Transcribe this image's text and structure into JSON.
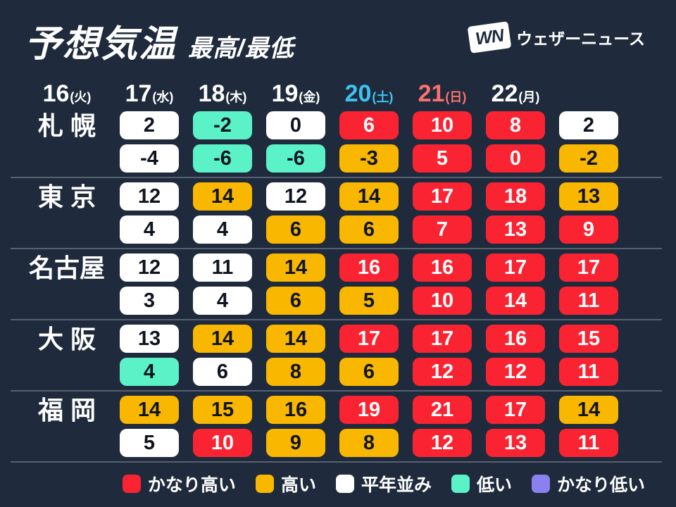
{
  "header": {
    "title": "予想気温",
    "subtitle": "最高/最低",
    "logo": {
      "mark": "WN",
      "text": "ウェザーニュース"
    }
  },
  "dates": [
    {
      "day": "16",
      "weekday": "(火)",
      "type": "weekday"
    },
    {
      "day": "17",
      "weekday": "(水)",
      "type": "weekday"
    },
    {
      "day": "18",
      "weekday": "(木)",
      "type": "weekday"
    },
    {
      "day": "19",
      "weekday": "(金)",
      "type": "weekday"
    },
    {
      "day": "20",
      "weekday": "(土)",
      "type": "saturday"
    },
    {
      "day": "21",
      "weekday": "(日)",
      "type": "sunday"
    },
    {
      "day": "22",
      "weekday": "(月)",
      "type": "weekday"
    }
  ],
  "cities": [
    {
      "name": "札 幌",
      "high": [
        {
          "v": "2",
          "level": "normal"
        },
        {
          "v": "-2",
          "level": "low"
        },
        {
          "v": "0",
          "level": "normal"
        },
        {
          "v": "6",
          "level": "very_high"
        },
        {
          "v": "10",
          "level": "very_high"
        },
        {
          "v": "8",
          "level": "very_high"
        },
        {
          "v": "2",
          "level": "normal"
        }
      ],
      "low": [
        {
          "v": "-4",
          "level": "normal"
        },
        {
          "v": "-6",
          "level": "low"
        },
        {
          "v": "-6",
          "level": "low"
        },
        {
          "v": "-3",
          "level": "high"
        },
        {
          "v": "5",
          "level": "very_high"
        },
        {
          "v": "0",
          "level": "very_high"
        },
        {
          "v": "-2",
          "level": "high"
        }
      ]
    },
    {
      "name": "東 京",
      "high": [
        {
          "v": "12",
          "level": "normal"
        },
        {
          "v": "14",
          "level": "high"
        },
        {
          "v": "12",
          "level": "normal"
        },
        {
          "v": "14",
          "level": "high"
        },
        {
          "v": "17",
          "level": "very_high"
        },
        {
          "v": "18",
          "level": "very_high"
        },
        {
          "v": "13",
          "level": "high"
        }
      ],
      "low": [
        {
          "v": "4",
          "level": "normal"
        },
        {
          "v": "4",
          "level": "normal"
        },
        {
          "v": "6",
          "level": "high"
        },
        {
          "v": "6",
          "level": "high"
        },
        {
          "v": "7",
          "level": "very_high"
        },
        {
          "v": "13",
          "level": "very_high"
        },
        {
          "v": "9",
          "level": "very_high"
        }
      ]
    },
    {
      "name": "名古屋",
      "high": [
        {
          "v": "12",
          "level": "normal"
        },
        {
          "v": "11",
          "level": "normal"
        },
        {
          "v": "14",
          "level": "high"
        },
        {
          "v": "16",
          "level": "very_high"
        },
        {
          "v": "16",
          "level": "very_high"
        },
        {
          "v": "17",
          "level": "very_high"
        },
        {
          "v": "17",
          "level": "very_high"
        }
      ],
      "low": [
        {
          "v": "3",
          "level": "normal"
        },
        {
          "v": "4",
          "level": "normal"
        },
        {
          "v": "6",
          "level": "high"
        },
        {
          "v": "5",
          "level": "high"
        },
        {
          "v": "10",
          "level": "very_high"
        },
        {
          "v": "14",
          "level": "very_high"
        },
        {
          "v": "11",
          "level": "very_high"
        }
      ]
    },
    {
      "name": "大 阪",
      "high": [
        {
          "v": "13",
          "level": "normal"
        },
        {
          "v": "14",
          "level": "high"
        },
        {
          "v": "14",
          "level": "high"
        },
        {
          "v": "17",
          "level": "very_high"
        },
        {
          "v": "17",
          "level": "very_high"
        },
        {
          "v": "16",
          "level": "very_high"
        },
        {
          "v": "15",
          "level": "very_high"
        }
      ],
      "low": [
        {
          "v": "4",
          "level": "low"
        },
        {
          "v": "6",
          "level": "normal"
        },
        {
          "v": "8",
          "level": "high"
        },
        {
          "v": "6",
          "level": "high"
        },
        {
          "v": "12",
          "level": "very_high"
        },
        {
          "v": "12",
          "level": "very_high"
        },
        {
          "v": "11",
          "level": "very_high"
        }
      ]
    },
    {
      "name": "福 岡",
      "high": [
        {
          "v": "14",
          "level": "high"
        },
        {
          "v": "15",
          "level": "high"
        },
        {
          "v": "16",
          "level": "high"
        },
        {
          "v": "19",
          "level": "very_high"
        },
        {
          "v": "21",
          "level": "very_high"
        },
        {
          "v": "17",
          "level": "very_high"
        },
        {
          "v": "14",
          "level": "high"
        }
      ],
      "low": [
        {
          "v": "5",
          "level": "normal"
        },
        {
          "v": "10",
          "level": "very_high"
        },
        {
          "v": "9",
          "level": "high"
        },
        {
          "v": "8",
          "level": "high"
        },
        {
          "v": "12",
          "level": "very_high"
        },
        {
          "v": "13",
          "level": "very_high"
        },
        {
          "v": "11",
          "level": "very_high"
        }
      ]
    }
  ],
  "legend": [
    {
      "label": "かなり高い",
      "level": "very_high"
    },
    {
      "label": "高い",
      "level": "high"
    },
    {
      "label": "平年並み",
      "level": "normal"
    },
    {
      "label": "低い",
      "level": "low"
    },
    {
      "label": "かなり低い",
      "level": "very_low"
    }
  ],
  "colors": {
    "background": "#1f2b3c",
    "very_high": "#fa2332",
    "high": "#f9b700",
    "normal": "#ffffff",
    "low": "#5cf2c8",
    "very_low": "#8b80f0",
    "saturday": "#41c0f0",
    "sunday": "#f8716c",
    "weekday": "#ffffff",
    "divider": "#57606e",
    "dark_text": "#0e1420",
    "light_text": "#ffffff"
  },
  "chart_data": {
    "type": "table",
    "title": "予想気温 最高/最低",
    "columns": [
      "16(火)",
      "17(水)",
      "18(木)",
      "19(金)",
      "20(土)",
      "21(日)",
      "22(月)"
    ],
    "rows": [
      {
        "city": "札幌",
        "high": [
          2,
          -2,
          0,
          6,
          10,
          8,
          2
        ],
        "low": [
          -4,
          -6,
          -6,
          -3,
          5,
          0,
          -2
        ]
      },
      {
        "city": "東京",
        "high": [
          12,
          14,
          12,
          14,
          17,
          18,
          13
        ],
        "low": [
          4,
          4,
          6,
          6,
          7,
          13,
          9
        ]
      },
      {
        "city": "名古屋",
        "high": [
          12,
          11,
          14,
          16,
          16,
          17,
          17
        ],
        "low": [
          3,
          4,
          6,
          5,
          10,
          14,
          11
        ]
      },
      {
        "city": "大阪",
        "high": [
          13,
          14,
          14,
          17,
          17,
          16,
          15
        ],
        "low": [
          4,
          6,
          8,
          6,
          12,
          12,
          11
        ]
      },
      {
        "city": "福岡",
        "high": [
          14,
          15,
          16,
          19,
          21,
          17,
          14
        ],
        "low": [
          5,
          10,
          9,
          8,
          12,
          13,
          11
        ]
      }
    ],
    "legend": [
      "かなり高い",
      "高い",
      "平年並み",
      "低い",
      "かなり低い"
    ],
    "legend_position": "bottom"
  }
}
